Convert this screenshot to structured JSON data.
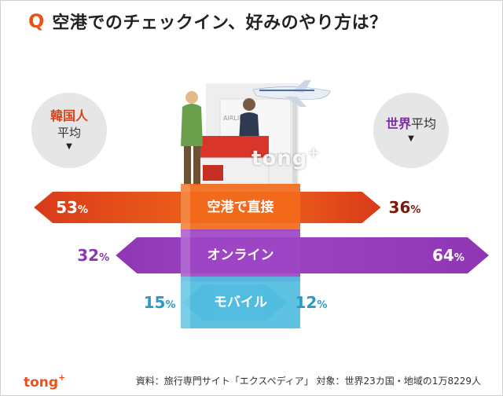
{
  "title": {
    "q": "Q",
    "text": "空港でのチェックイン、好みのやり方は？"
  },
  "legend": {
    "left": {
      "name": "韓国人",
      "sub": "平均",
      "marker": "▼"
    },
    "right": {
      "name": "世界",
      "sub": "平均",
      "marker": "▼"
    }
  },
  "illustration": {
    "sign": "AIRLINES"
  },
  "watermark": {
    "text": "tong",
    "sup": "+"
  },
  "chart_data": {
    "type": "bar",
    "categories": [
      "空港で直接",
      "オンライン",
      "モバイル"
    ],
    "series": [
      {
        "name": "韓国人平均",
        "values": [
          53,
          32,
          15
        ]
      },
      {
        "name": "世界平均",
        "values": [
          36,
          64,
          12
        ]
      }
    ],
    "unit": "%",
    "colors": [
      "#d93a1a",
      "#8e36b3",
      "#3fb0d6"
    ],
    "xlabel": "",
    "ylabel": ""
  },
  "footer": {
    "logo": "tong",
    "logo_sup": "+",
    "source": "資料：旅行専門サイト「エクスペディア」 対象：世界23カ国・地域の1万8229人"
  }
}
